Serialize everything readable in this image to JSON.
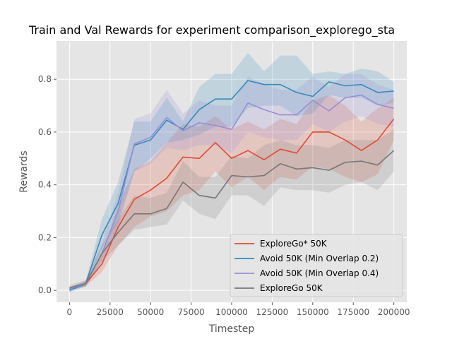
{
  "chart_data": {
    "type": "line",
    "title": "Train and Val Rewards for experiment comparison_explorego_sta",
    "xlabel": "Timestep",
    "ylabel": "Rewards",
    "xlim": [
      -8000,
      208000
    ],
    "ylim": [
      -0.045,
      0.945
    ],
    "xticks": [
      0,
      25000,
      50000,
      75000,
      100000,
      125000,
      150000,
      175000,
      200000
    ],
    "xtick_labels": [
      "0",
      "25000",
      "50000",
      "75000",
      "100000",
      "125000",
      "150000",
      "175000",
      "200000"
    ],
    "yticks": [
      0.0,
      0.2,
      0.4,
      0.6,
      0.8
    ],
    "ytick_labels": [
      "0.0",
      "0.2",
      "0.4",
      "0.6",
      "0.8"
    ],
    "grid": true,
    "legend_position": "bottom-right",
    "x": [
      0,
      10000,
      20000,
      30000,
      40000,
      50000,
      60000,
      70000,
      80000,
      90000,
      100000,
      110000,
      120000,
      130000,
      140000,
      150000,
      160000,
      170000,
      180000,
      190000,
      200000
    ],
    "series": [
      {
        "name": "ExploreGo* 50K",
        "color": "#E24A33",
        "values": [
          0.005,
          0.025,
          0.1,
          0.24,
          0.345,
          0.38,
          0.425,
          0.505,
          0.5,
          0.56,
          0.5,
          0.53,
          0.495,
          0.535,
          0.52,
          0.6,
          0.6,
          0.57,
          0.53,
          0.57,
          0.65
        ],
        "lower": [
          0.0,
          0.015,
          0.07,
          0.17,
          0.24,
          0.28,
          0.3,
          0.36,
          0.38,
          0.45,
          0.39,
          0.43,
          0.38,
          0.43,
          0.42,
          0.47,
          0.46,
          0.43,
          0.41,
          0.44,
          0.57
        ],
        "upper": [
          0.012,
          0.035,
          0.14,
          0.32,
          0.46,
          0.49,
          0.56,
          0.63,
          0.62,
          0.66,
          0.61,
          0.64,
          0.61,
          0.65,
          0.63,
          0.72,
          0.74,
          0.7,
          0.64,
          0.69,
          0.73
        ]
      },
      {
        "name": "Avoid 50K (Min Overlap 0.2)",
        "color": "#348ABD",
        "values": [
          0.0,
          0.025,
          0.21,
          0.33,
          0.55,
          0.57,
          0.645,
          0.61,
          0.685,
          0.725,
          0.725,
          0.795,
          0.78,
          0.78,
          0.75,
          0.735,
          0.79,
          0.775,
          0.78,
          0.75,
          0.755
        ],
        "lower": [
          -0.008,
          0.015,
          0.16,
          0.26,
          0.45,
          0.5,
          0.56,
          0.57,
          0.59,
          0.62,
          0.62,
          0.69,
          0.7,
          0.7,
          0.66,
          0.67,
          0.74,
          0.73,
          0.73,
          0.7,
          0.71
        ],
        "upper": [
          0.01,
          0.035,
          0.27,
          0.41,
          0.64,
          0.64,
          0.73,
          0.64,
          0.77,
          0.82,
          0.82,
          0.9,
          0.83,
          0.89,
          0.89,
          0.82,
          0.83,
          0.82,
          0.84,
          0.83,
          0.79
        ]
      },
      {
        "name": "Avoid 50K (Min Overlap 0.4)",
        "color": "#988ED5",
        "values": [
          0.005,
          0.025,
          0.14,
          0.3,
          0.555,
          0.58,
          0.655,
          0.605,
          0.635,
          0.625,
          0.61,
          0.71,
          0.685,
          0.665,
          0.665,
          0.72,
          0.68,
          0.73,
          0.74,
          0.705,
          0.69
        ],
        "lower": [
          0.0,
          0.015,
          0.11,
          0.24,
          0.45,
          0.48,
          0.54,
          0.53,
          0.55,
          0.55,
          0.52,
          0.6,
          0.58,
          0.57,
          0.57,
          0.63,
          0.6,
          0.64,
          0.66,
          0.63,
          0.62
        ],
        "upper": [
          0.012,
          0.035,
          0.18,
          0.37,
          0.65,
          0.67,
          0.76,
          0.67,
          0.72,
          0.7,
          0.7,
          0.81,
          0.78,
          0.76,
          0.76,
          0.81,
          0.77,
          0.82,
          0.82,
          0.78,
          0.76
        ]
      },
      {
        "name": "ExploreGo 50K",
        "color": "#777777",
        "values": [
          0.01,
          0.025,
          0.14,
          0.22,
          0.29,
          0.29,
          0.31,
          0.41,
          0.36,
          0.35,
          0.435,
          0.43,
          0.435,
          0.48,
          0.46,
          0.465,
          0.455,
          0.485,
          0.49,
          0.475,
          0.53
        ],
        "lower": [
          0.005,
          0.015,
          0.11,
          0.17,
          0.23,
          0.24,
          0.25,
          0.34,
          0.29,
          0.27,
          0.36,
          0.36,
          0.32,
          0.39,
          0.38,
          0.38,
          0.37,
          0.4,
          0.41,
          0.38,
          0.45
        ],
        "upper": [
          0.02,
          0.04,
          0.17,
          0.27,
          0.36,
          0.35,
          0.37,
          0.49,
          0.43,
          0.43,
          0.51,
          0.5,
          0.55,
          0.57,
          0.55,
          0.55,
          0.54,
          0.57,
          0.57,
          0.57,
          0.61
        ]
      }
    ]
  }
}
